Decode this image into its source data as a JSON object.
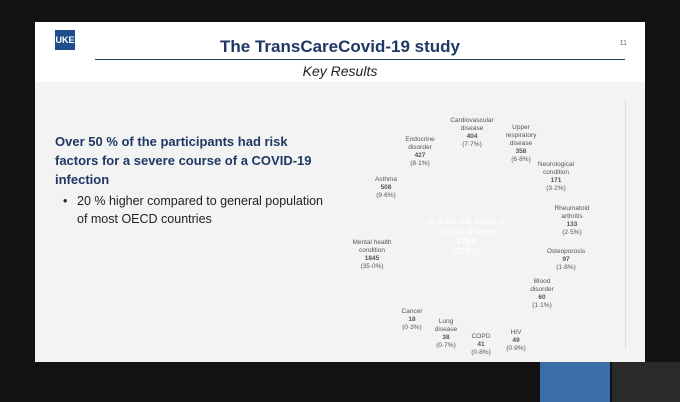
{
  "header": {
    "logo": "UKE",
    "title": "The TransCareCovid-19 study",
    "page_number": "11",
    "subtitle": "Key Results"
  },
  "content": {
    "heading": "Over 50 % of the participants had risk factors for a severe course of a COVID-19 infection",
    "bullets": [
      "20 % higher compared to general population of most OECD countries"
    ]
  },
  "diagram": {
    "center": {
      "label": "At least one acute or chronic disease",
      "count": "2768",
      "percent": "(52·6%)"
    },
    "bubbles": [
      {
        "label": "Mental health condition",
        "count": "1845",
        "percent": "(35·0%)"
      },
      {
        "label": "Asthma",
        "count": "508",
        "percent": "(9·6%)"
      },
      {
        "label": "Endocrine disorder",
        "count": "427",
        "percent": "(8·1%)"
      },
      {
        "label": "Cardiovascular disease",
        "count": "404",
        "percent": "(7·7%)"
      },
      {
        "label": "Upper respiratory disease",
        "count": "358",
        "percent": "(6·8%)"
      },
      {
        "label": "Neurological condition",
        "count": "171",
        "percent": "(3·2%)"
      },
      {
        "label": "Rheumatoid arthritis",
        "count": "133",
        "percent": "(2·5%)"
      },
      {
        "label": "Osteoporosis",
        "count": "97",
        "percent": "(1·8%)"
      },
      {
        "label": "Blood disorder",
        "count": "60",
        "percent": "(1·1%)"
      },
      {
        "label": "Cancer",
        "count": "18",
        "percent": "(0·3%)"
      },
      {
        "label": "Lung disease",
        "count": "38",
        "percent": "(0·7%)"
      },
      {
        "label": "COPD",
        "count": "41",
        "percent": "(0·8%)"
      },
      {
        "label": "HIV",
        "count": "49",
        "percent": "(0·9%)"
      }
    ]
  }
}
